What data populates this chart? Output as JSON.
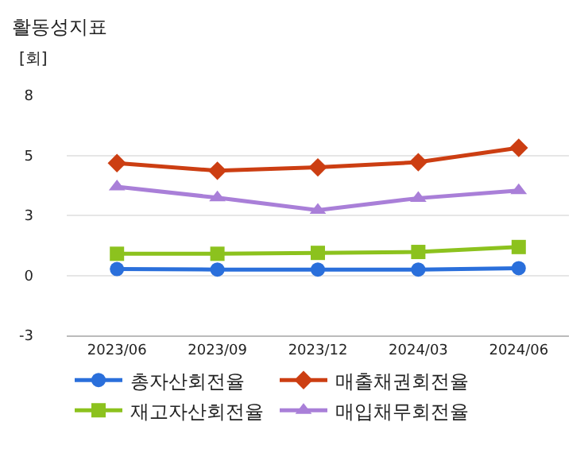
{
  "chart_data": {
    "type": "line",
    "title": "활동성지표",
    "ylabel": "[회]",
    "categories": [
      "2023/06",
      "2023/09",
      "2023/12",
      "2024/03",
      "2024/06"
    ],
    "series": [
      {
        "name": "총자산회전율",
        "color": "#2a6fdb",
        "marker": "circle",
        "values": [
          0.28,
          0.26,
          0.26,
          0.26,
          0.32
        ]
      },
      {
        "name": "매출채권회전율",
        "color": "#cc3e12",
        "marker": "diamond",
        "values": [
          4.99,
          4.65,
          4.8,
          5.03,
          5.67
        ]
      },
      {
        "name": "재고자산회전율",
        "color": "#8cc21e",
        "marker": "square",
        "values": [
          0.96,
          0.96,
          1.0,
          1.04,
          1.26
        ]
      },
      {
        "name": "매입채무회전율",
        "color": "#a97fd8",
        "marker": "triangle",
        "values": [
          3.94,
          3.45,
          2.9,
          3.43,
          3.77
        ]
      }
    ],
    "ylim": [
      -2.667,
      8
    ],
    "yticks": [
      {
        "value": -2.667,
        "label": "-3"
      },
      0,
      {
        "value": 2.667,
        "label": "3"
      },
      {
        "value": 5.333,
        "label": "5"
      },
      8
    ],
    "grid": "y",
    "legend": "bottom",
    "line_style": "solid"
  }
}
